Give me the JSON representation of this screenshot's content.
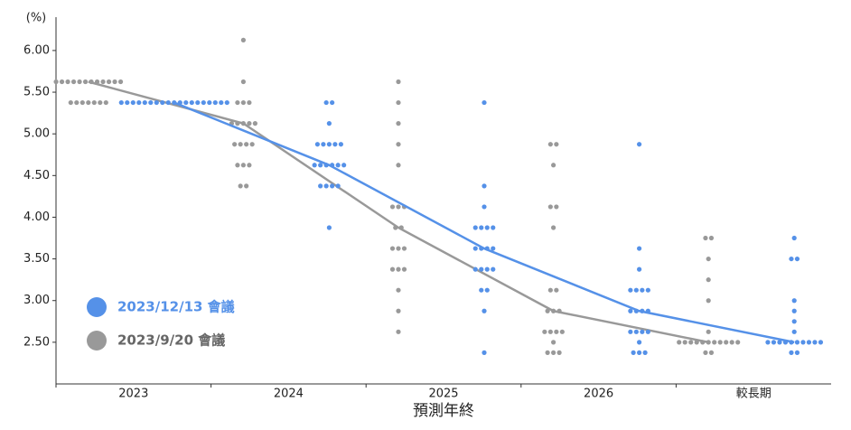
{
  "chart_data": {
    "type": "dot",
    "y_unit": "(%)",
    "x_label": "預測年終",
    "categories": [
      "2023",
      "2024",
      "2025",
      "2026",
      "較長期"
    ],
    "ylim": [
      2.0,
      6.4
    ],
    "yticks": [
      {
        "value": 2.5,
        "label": "2.50"
      },
      {
        "value": 3.0,
        "label": "3.00"
      },
      {
        "value": 3.5,
        "label": "3.50"
      },
      {
        "value": 4.0,
        "label": "4.00"
      },
      {
        "value": 4.5,
        "label": "4.50"
      },
      {
        "value": 5.0,
        "label": "5.00"
      },
      {
        "value": 5.5,
        "label": "5.50"
      },
      {
        "value": 6.0,
        "label": "6.00"
      }
    ],
    "legend": "lower left",
    "series": [
      {
        "name": "2023/9/20 會議",
        "color": "#999999",
        "values": [
          5.625,
          5.125,
          3.875,
          2.875,
          2.5
        ],
        "dots": [
          [
            {
              "rate": 5.625,
              "count": 12
            },
            {
              "rate": 5.375,
              "count": 7
            }
          ],
          [
            {
              "rate": 6.125,
              "count": 1
            },
            {
              "rate": 5.625,
              "count": 1
            },
            {
              "rate": 5.375,
              "count": 3
            },
            {
              "rate": 5.125,
              "count": 5
            },
            {
              "rate": 4.875,
              "count": 4
            },
            {
              "rate": 4.625,
              "count": 3
            },
            {
              "rate": 4.375,
              "count": 2
            }
          ],
          [
            {
              "rate": 5.625,
              "count": 1
            },
            {
              "rate": 5.375,
              "count": 1
            },
            {
              "rate": 5.125,
              "count": 1
            },
            {
              "rate": 4.875,
              "count": 1
            },
            {
              "rate": 4.625,
              "count": 1
            },
            {
              "rate": 4.125,
              "count": 3
            },
            {
              "rate": 3.875,
              "count": 2
            },
            {
              "rate": 3.625,
              "count": 3
            },
            {
              "rate": 3.375,
              "count": 3
            },
            {
              "rate": 3.125,
              "count": 1
            },
            {
              "rate": 2.875,
              "count": 1
            },
            {
              "rate": 2.625,
              "count": 1
            }
          ],
          [
            {
              "rate": 4.875,
              "count": 2
            },
            {
              "rate": 4.625,
              "count": 1
            },
            {
              "rate": 4.125,
              "count": 2
            },
            {
              "rate": 3.875,
              "count": 1
            },
            {
              "rate": 3.125,
              "count": 2
            },
            {
              "rate": 2.875,
              "count": 3
            },
            {
              "rate": 2.625,
              "count": 4
            },
            {
              "rate": 2.5,
              "count": 1
            },
            {
              "rate": 2.375,
              "count": 3
            }
          ],
          [
            {
              "rate": 3.75,
              "count": 2
            },
            {
              "rate": 3.5,
              "count": 1
            },
            {
              "rate": 3.25,
              "count": 1
            },
            {
              "rate": 3.0,
              "count": 1
            },
            {
              "rate": 2.625,
              "count": 1
            },
            {
              "rate": 2.5,
              "count": 11
            },
            {
              "rate": 2.375,
              "count": 2
            }
          ]
        ]
      },
      {
        "name": "2023/12/13 會議",
        "color": "#5591e8",
        "values": [
          5.375,
          4.625,
          3.625,
          2.875,
          2.5
        ],
        "dots": [
          [
            {
              "rate": 5.375,
              "count": 19
            }
          ],
          [
            {
              "rate": 5.375,
              "count": 2
            },
            {
              "rate": 5.125,
              "count": 1
            },
            {
              "rate": 4.875,
              "count": 5
            },
            {
              "rate": 4.625,
              "count": 6
            },
            {
              "rate": 4.375,
              "count": 4
            },
            {
              "rate": 3.875,
              "count": 1
            }
          ],
          [
            {
              "rate": 5.375,
              "count": 1
            },
            {
              "rate": 4.375,
              "count": 1
            },
            {
              "rate": 4.125,
              "count": 1
            },
            {
              "rate": 3.875,
              "count": 4
            },
            {
              "rate": 3.625,
              "count": 4
            },
            {
              "rate": 3.375,
              "count": 4
            },
            {
              "rate": 3.125,
              "count": 2
            },
            {
              "rate": 2.875,
              "count": 1
            },
            {
              "rate": 2.375,
              "count": 1
            }
          ],
          [
            {
              "rate": 4.875,
              "count": 1
            },
            {
              "rate": 3.625,
              "count": 1
            },
            {
              "rate": 3.375,
              "count": 1
            },
            {
              "rate": 3.125,
              "count": 4
            },
            {
              "rate": 2.875,
              "count": 4
            },
            {
              "rate": 2.625,
              "count": 4
            },
            {
              "rate": 2.5,
              "count": 1
            },
            {
              "rate": 2.375,
              "count": 3
            }
          ],
          [
            {
              "rate": 3.75,
              "count": 1
            },
            {
              "rate": 3.5,
              "count": 2
            },
            {
              "rate": 3.0,
              "count": 1
            },
            {
              "rate": 2.875,
              "count": 1
            },
            {
              "rate": 2.75,
              "count": 1
            },
            {
              "rate": 2.625,
              "count": 1
            },
            {
              "rate": 2.5,
              "count": 10
            },
            {
              "rate": 2.375,
              "count": 2
            }
          ]
        ]
      }
    ]
  }
}
